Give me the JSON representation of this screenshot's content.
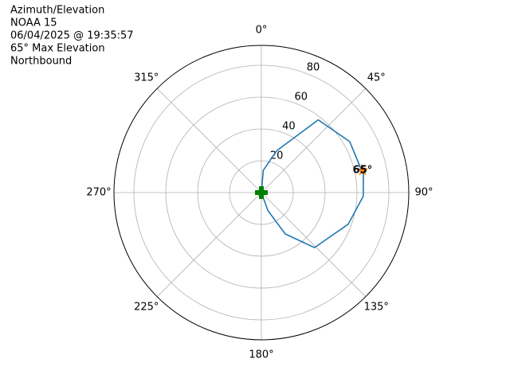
{
  "chart_data": {
    "type": "polar",
    "title": [
      "Azimuth/Elevation",
      "NOAA 15",
      "06/04/2025 @ 19:35:57",
      "65° Max Elevation",
      "Northbound"
    ],
    "series": [
      {
        "color": "#1f77b4",
        "theta": [
          0,
          5,
          20,
          38,
          60,
          80,
          92,
          110,
          136,
          150,
          160,
          170
        ],
        "values": [
          0,
          14,
          28,
          58,
          64,
          65,
          64,
          58,
          48,
          30,
          12,
          0
        ]
      }
    ],
    "max_point": {
      "theta": 77.6,
      "value": 65,
      "label": "65°",
      "color": "#ff7f0e"
    },
    "start_point": {
      "theta": 0,
      "value": 0,
      "color": "#008000"
    },
    "rlim": [
      0,
      92.5
    ],
    "rticks": [
      20,
      40,
      60,
      80
    ],
    "thetaticks": [
      {
        "value": 0,
        "label": "0°"
      },
      {
        "value": 45,
        "label": "45°"
      },
      {
        "value": 90,
        "label": "90°"
      },
      {
        "value": 135,
        "label": "135°"
      },
      {
        "value": 180,
        "label": "180°"
      },
      {
        "value": 225,
        "label": "225°"
      },
      {
        "value": 270,
        "label": "270°"
      },
      {
        "value": 315,
        "label": "315°"
      }
    ],
    "grid": true
  }
}
